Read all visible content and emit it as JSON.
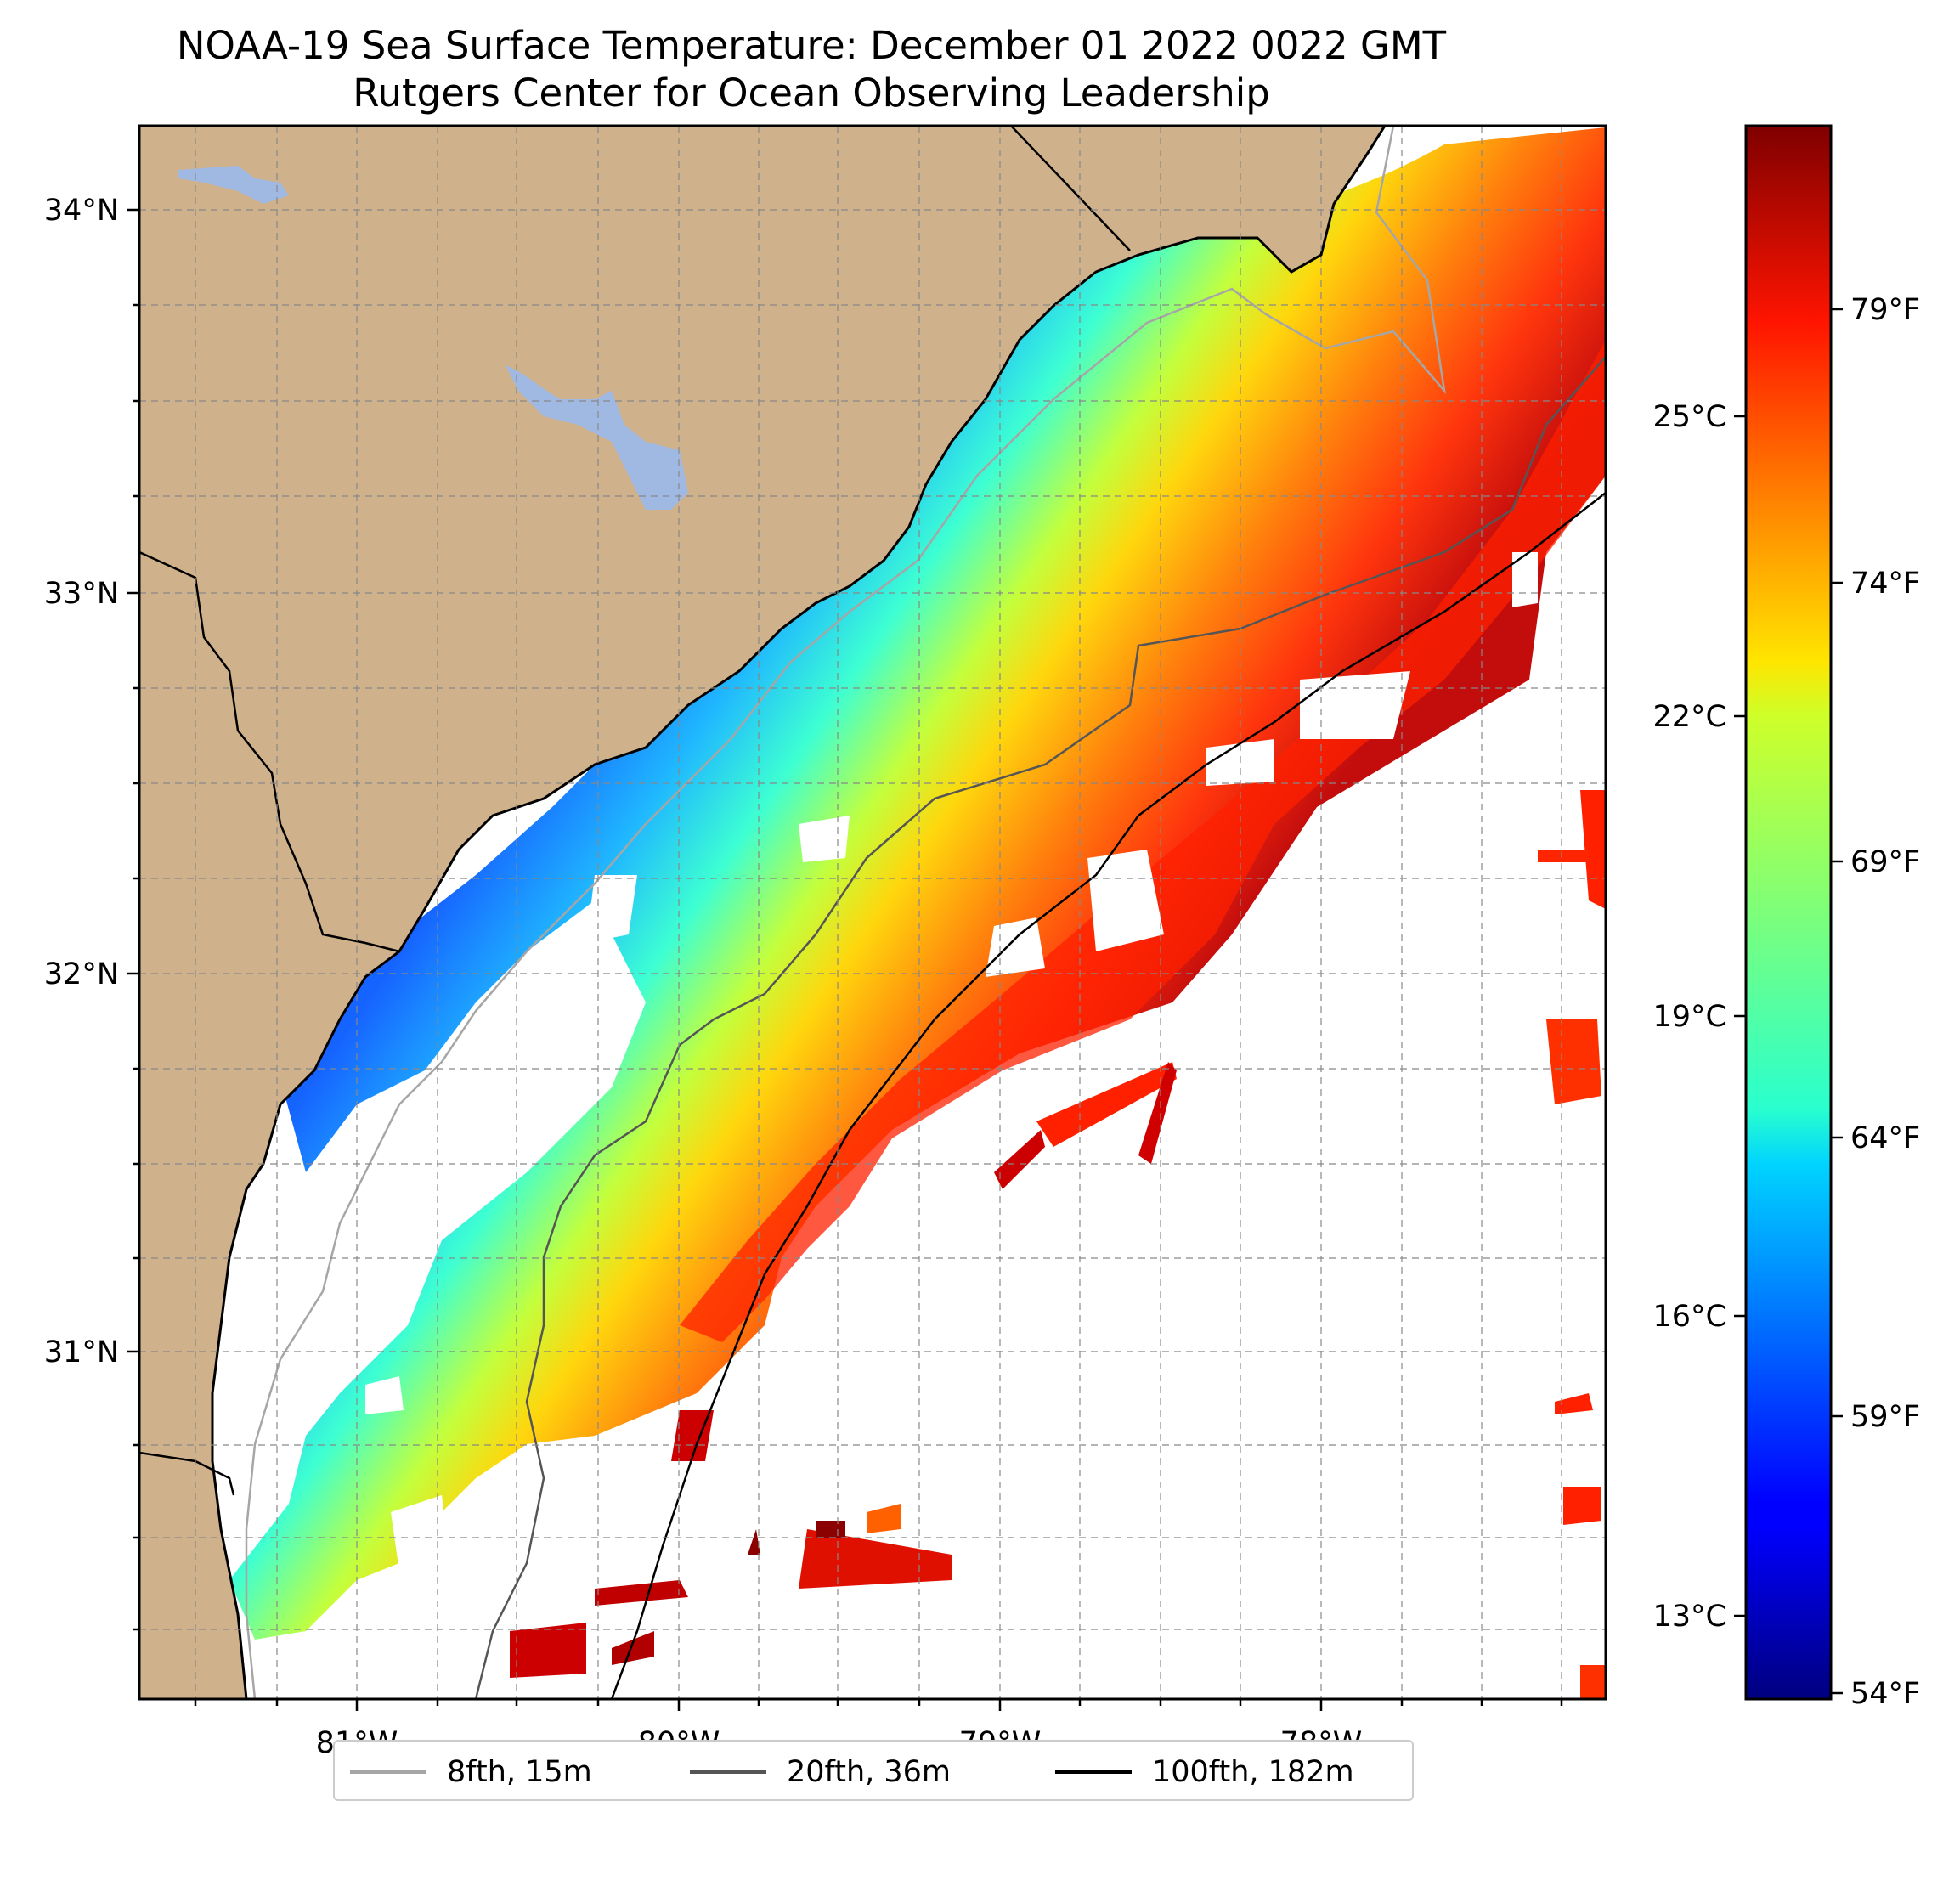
{
  "title": {
    "line1": "NOAA-19 Sea Surface Temperature: December 01 2022 0022 GMT",
    "line2": "Rutgers Center for Ocean Observing Leadership"
  },
  "map": {
    "lon_range": [
      -81.67,
      -77.1
    ],
    "lat_range": [
      30.07,
      34.22
    ],
    "lon_ticks": [
      "81°W",
      "80°W",
      "79°W",
      "78°W"
    ],
    "lat_ticks": [
      "34°N",
      "33°N",
      "32°N",
      "31°N"
    ],
    "land_color": "#cfb18b",
    "lake_color": "#a0b9e3",
    "gridlines": true
  },
  "colorbar": {
    "colormap": "jet",
    "celsius_ticks": [
      "25°C",
      "22°C",
      "19°C",
      "16°C",
      "13°C"
    ],
    "fahrenheit_ticks": [
      "79°F",
      "74°F",
      "69°F",
      "64°F",
      "59°F",
      "54°F"
    ]
  },
  "legend": {
    "items": [
      {
        "label": "8fth, 15m",
        "color": "#a6a6a6"
      },
      {
        "label": "20fth, 36m",
        "color": "#555555"
      },
      {
        "label": "100fth, 182m",
        "color": "#000000"
      }
    ]
  }
}
